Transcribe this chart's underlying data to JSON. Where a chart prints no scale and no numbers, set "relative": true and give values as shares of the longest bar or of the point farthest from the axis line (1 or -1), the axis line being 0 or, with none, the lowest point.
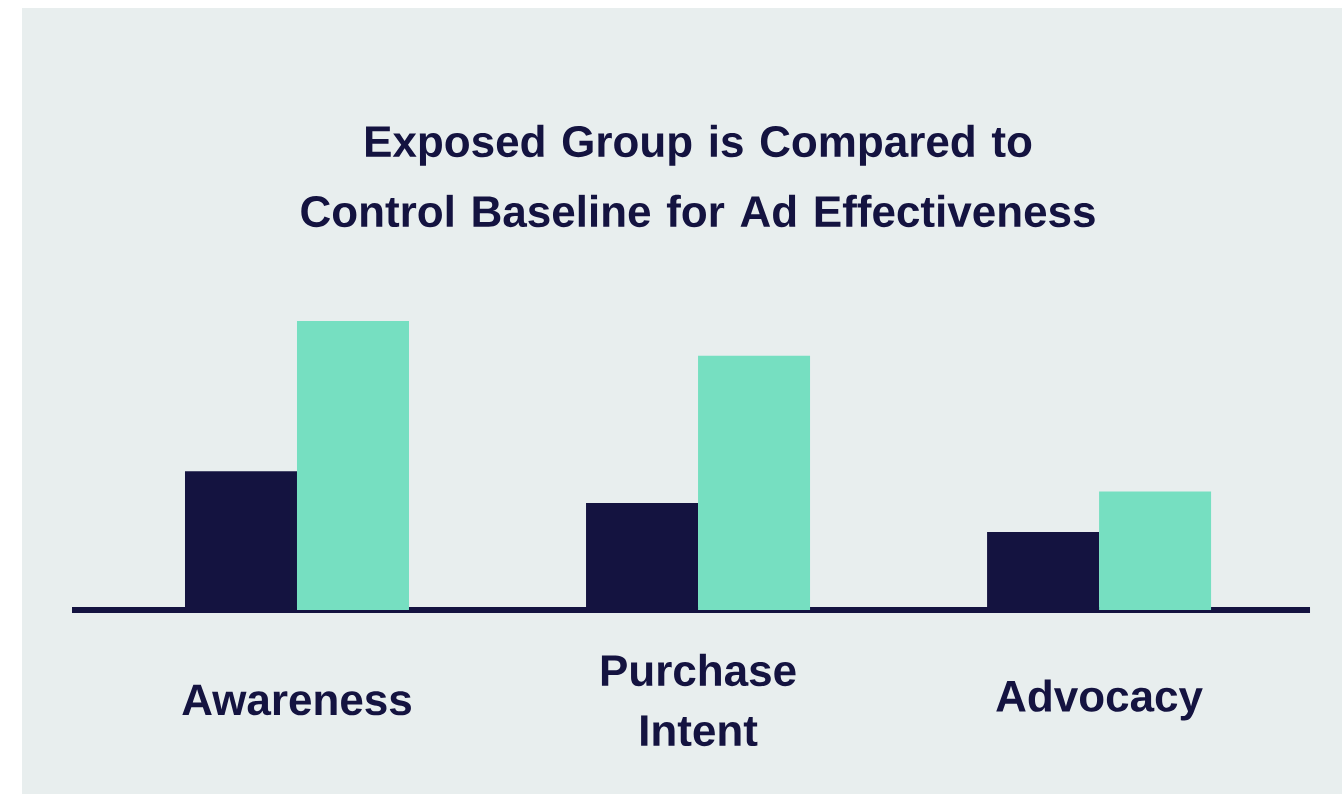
{
  "chart_data": {
    "type": "bar",
    "title": "Exposed Group is Compared to Control Baseline for Ad Effectiveness",
    "categories": [
      "Awareness",
      "Purchase Intent",
      "Advocacy"
    ],
    "relative": true,
    "series": [
      {
        "color": "#141340",
        "values": [
          0.48,
          0.37,
          0.27
        ]
      },
      {
        "color": "#76dfc1",
        "values": [
          1,
          0.88,
          0.41
        ]
      }
    ]
  }
}
